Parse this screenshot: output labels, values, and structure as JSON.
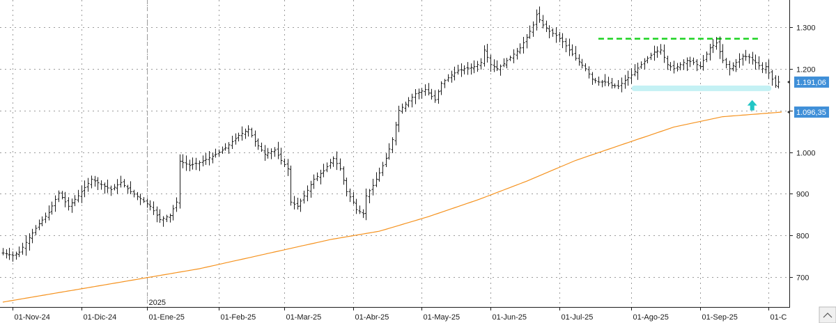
{
  "chart_data": {
    "type": "ohlc",
    "title": "",
    "ylim": [
      630,
      1365
    ],
    "y_ticks": [
      {
        "value": 700,
        "label": "700"
      },
      {
        "value": 800,
        "label": "800"
      },
      {
        "value": 900,
        "label": "900"
      },
      {
        "value": 1000,
        "label": "1.000"
      },
      {
        "value": 1100,
        "label": "1.100"
      },
      {
        "value": 1200,
        "label": "1.200"
      },
      {
        "value": 1300,
        "label": "1.300"
      }
    ],
    "x_ticks": [
      {
        "index": 3,
        "label": "01-Nov-24"
      },
      {
        "index": 24,
        "label": "01-Dic-24"
      },
      {
        "index": 44,
        "label": "01-Ene-25"
      },
      {
        "index": 66,
        "label": "01-Feb-25"
      },
      {
        "index": 86,
        "label": "01-Mar-25"
      },
      {
        "index": 107,
        "label": "01-Abr-25"
      },
      {
        "index": 128,
        "label": "01-May-25"
      },
      {
        "index": 149,
        "label": "01-Jun-25"
      },
      {
        "index": 170,
        "label": "01-Jul-25"
      },
      {
        "index": 192,
        "label": "01-Ago-25"
      },
      {
        "index": 213,
        "label": "01-Sep-25"
      },
      {
        "index": 234,
        "label": "01-C"
      }
    ],
    "year_marker": {
      "index": 44,
      "label": "2025"
    },
    "n_bars": 238,
    "price_anchors": [
      [
        0,
        758
      ],
      [
        3,
        752
      ],
      [
        5,
        760
      ],
      [
        8,
        795
      ],
      [
        11,
        828
      ],
      [
        14,
        855
      ],
      [
        17,
        902
      ],
      [
        20,
        870
      ],
      [
        23,
        895
      ],
      [
        27,
        935
      ],
      [
        30,
        922
      ],
      [
        33,
        910
      ],
      [
        36,
        927
      ],
      [
        39,
        905
      ],
      [
        42,
        888
      ],
      [
        45,
        870
      ],
      [
        48,
        838
      ],
      [
        51,
        848
      ],
      [
        53,
        880
      ],
      [
        54,
        978
      ],
      [
        57,
        968
      ],
      [
        60,
        975
      ],
      [
        64,
        990
      ],
      [
        68,
        1010
      ],
      [
        72,
        1040
      ],
      [
        75,
        1055
      ],
      [
        77,
        1025
      ],
      [
        80,
        995
      ],
      [
        83,
        1005
      ],
      [
        85,
        980
      ],
      [
        87,
        960
      ],
      [
        88,
        880
      ],
      [
        90,
        870
      ],
      [
        92,
        895
      ],
      [
        95,
        935
      ],
      [
        98,
        955
      ],
      [
        101,
        985
      ],
      [
        103,
        960
      ],
      [
        105,
        905
      ],
      [
        107,
        880
      ],
      [
        108,
        862
      ],
      [
        110,
        852
      ],
      [
        111,
        895
      ],
      [
        113,
        920
      ],
      [
        115,
        950
      ],
      [
        117,
        985
      ],
      [
        119,
        1030
      ],
      [
        121,
        1100
      ],
      [
        123,
        1115
      ],
      [
        126,
        1140
      ],
      [
        129,
        1150
      ],
      [
        132,
        1125
      ],
      [
        134,
        1165
      ],
      [
        137,
        1185
      ],
      [
        139,
        1195
      ],
      [
        141,
        1200
      ],
      [
        144,
        1205
      ],
      [
        146,
        1215
      ],
      [
        147,
        1245
      ],
      [
        149,
        1210
      ],
      [
        151,
        1200
      ],
      [
        153,
        1212
      ],
      [
        156,
        1235
      ],
      [
        158,
        1250
      ],
      [
        160,
        1275
      ],
      [
        162,
        1305
      ],
      [
        163,
        1330
      ],
      [
        165,
        1305
      ],
      [
        167,
        1290
      ],
      [
        169,
        1280
      ],
      [
        171,
        1265
      ],
      [
        173,
        1245
      ],
      [
        175,
        1225
      ],
      [
        178,
        1200
      ],
      [
        180,
        1175
      ],
      [
        182,
        1168
      ],
      [
        184,
        1168
      ],
      [
        186,
        1160
      ],
      [
        188,
        1158
      ],
      [
        190,
        1172
      ],
      [
        192,
        1185
      ],
      [
        195,
        1210
      ],
      [
        197,
        1225
      ],
      [
        199,
        1240
      ],
      [
        201,
        1245
      ],
      [
        203,
        1210
      ],
      [
        205,
        1200
      ],
      [
        207,
        1210
      ],
      [
        209,
        1220
      ],
      [
        211,
        1215
      ],
      [
        213,
        1205
      ],
      [
        214,
        1220
      ],
      [
        216,
        1250
      ],
      [
        218,
        1262
      ],
      [
        220,
        1220
      ],
      [
        222,
        1200
      ],
      [
        224,
        1215
      ],
      [
        226,
        1230
      ],
      [
        228,
        1228
      ],
      [
        230,
        1215
      ],
      [
        232,
        1200
      ],
      [
        233,
        1205
      ],
      [
        235,
        1175
      ],
      [
        236,
        1160
      ],
      [
        237,
        1168
      ],
      [
        238,
        1190
      ]
    ],
    "series": [
      {
        "name": "",
        "type": "ohlc",
        "color": "#1a1a1a",
        "last_value_label": "1.191,06"
      },
      {
        "name": "",
        "type": "line",
        "color": "#f5921e",
        "anchors": [
          [
            0,
            640
          ],
          [
            30,
            680
          ],
          [
            60,
            720
          ],
          [
            80,
            755
          ],
          [
            100,
            790
          ],
          [
            115,
            810
          ],
          [
            130,
            845
          ],
          [
            145,
            885
          ],
          [
            160,
            930
          ],
          [
            175,
            980
          ],
          [
            190,
            1020
          ],
          [
            205,
            1060
          ],
          [
            220,
            1085
          ],
          [
            238,
            1096
          ]
        ],
        "last_value_label": "1.096,35"
      }
    ],
    "annotations": [
      {
        "type": "hline",
        "style": "dashed",
        "color": "#19d21e",
        "y": 1272,
        "x_from_index": 182,
        "x_to_index": 231
      },
      {
        "type": "hline",
        "style": "band",
        "color": "#c4f1f4",
        "y": 1153,
        "x_from_index": 193,
        "x_to_index": 234
      },
      {
        "type": "arrow-up",
        "color": "#22c5c5",
        "x_index": 229,
        "y": 1110
      }
    ],
    "colors": {
      "background": "#ffffff",
      "grid": "#9a9a9a",
      "price_bar": "#1a1a1a",
      "moving_average": "#f5921e",
      "resistance": "#19d21e",
      "support": "#c4f1f4",
      "label_badge": "#3f8fd8"
    },
    "grid": true,
    "xlabel": "",
    "ylabel": ""
  }
}
